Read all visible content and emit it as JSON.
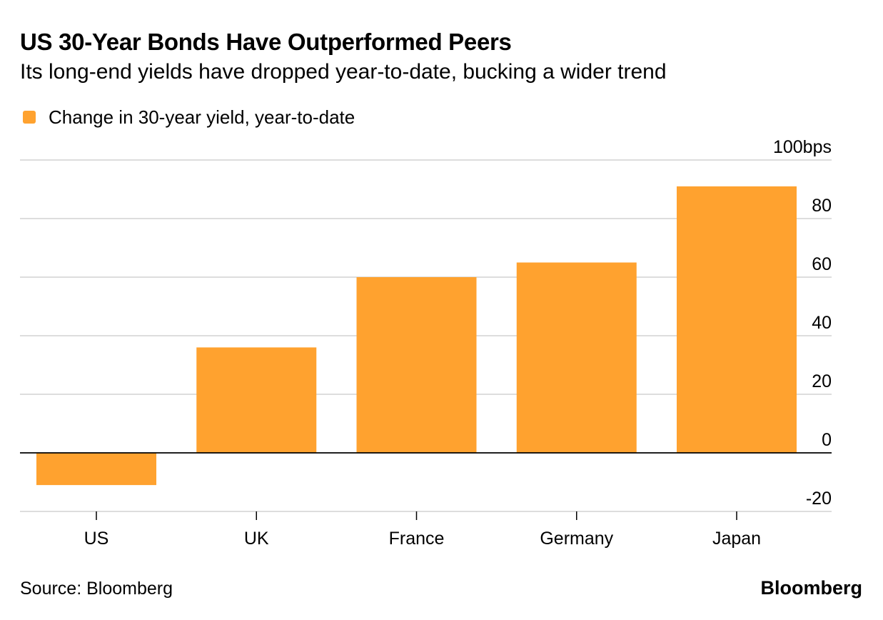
{
  "chart_data": {
    "type": "bar",
    "title": "US 30-Year Bonds Have Outperformed Peers",
    "subtitle": "Its long-end yields have dropped year-to-date, bucking a wider trend",
    "legend": {
      "label": "Change in 30-year yield, year-to-date",
      "color": "#FFA22F",
      "placement": "top-left"
    },
    "categories": [
      "US",
      "UK",
      "France",
      "Germany",
      "Japan"
    ],
    "series": [
      {
        "name": "Change in 30-year yield, year-to-date",
        "values": [
          -11,
          36,
          60,
          65,
          91
        ],
        "color": "#FFA22F"
      }
    ],
    "ylim": [
      -20,
      100
    ],
    "yticks": [
      -20,
      0,
      20,
      40,
      60,
      80,
      100
    ],
    "ytick_labels": [
      "-20",
      "0",
      "20",
      "40",
      "60",
      "80",
      "100bps"
    ],
    "yaxis_position": "right",
    "xlabel": "",
    "ylabel": "",
    "grid": true
  },
  "footer": {
    "source": "Source: Bloomberg",
    "brand": "Bloomberg"
  }
}
